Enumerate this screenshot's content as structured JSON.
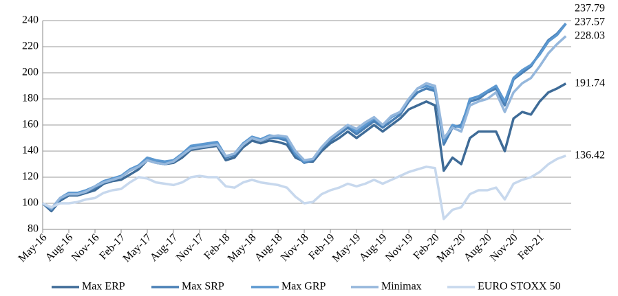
{
  "chart_data": {
    "type": "line",
    "categories": [
      "May-16",
      null,
      null,
      "Aug-16",
      null,
      null,
      "Nov-16",
      null,
      null,
      "Feb-17",
      null,
      null,
      "May-17",
      null,
      null,
      "Aug-17",
      null,
      null,
      "Nov-17",
      null,
      null,
      "Feb-18",
      null,
      null,
      "May-18",
      null,
      null,
      "Aug-18",
      null,
      null,
      "Nov-18",
      null,
      null,
      "Feb-19",
      null,
      null,
      "May-19",
      null,
      null,
      "Aug-19",
      null,
      null,
      "Nov-19",
      null,
      null,
      "Feb-20",
      null,
      null,
      "May-20",
      null,
      null,
      "Aug-20",
      null,
      null,
      "Nov-20",
      null,
      null,
      "Feb-21",
      null,
      null,
      null
    ],
    "series": [
      {
        "name": "Max ERP",
        "color": "#3e6b97",
        "values": [
          100,
          94,
          102,
          106,
          106,
          108,
          110,
          115,
          117,
          118,
          122,
          126,
          133,
          131,
          130,
          131,
          135,
          141,
          142,
          143,
          144,
          133,
          135,
          143,
          148,
          146,
          148,
          147,
          145,
          135,
          132,
          132,
          140,
          146,
          150,
          155,
          150,
          155,
          160,
          155,
          160,
          165,
          172,
          175,
          178,
          175,
          125,
          135,
          130,
          150,
          155,
          155,
          155,
          140,
          165,
          170,
          168,
          178,
          185,
          188,
          191.74
        ]
      },
      {
        "name": "Max SRP",
        "color": "#4a80b6",
        "values": [
          100,
          95,
          103,
          107,
          107,
          109,
          112,
          116,
          118,
          120,
          125,
          128,
          134,
          132,
          131,
          132,
          137,
          143,
          144,
          145,
          146,
          135,
          137,
          145,
          150,
          148,
          150,
          150,
          148,
          137,
          131,
          133,
          142,
          148,
          153,
          158,
          153,
          158,
          163,
          158,
          163,
          168,
          178,
          185,
          188,
          186,
          145,
          158,
          160,
          178,
          180,
          185,
          188,
          175,
          195,
          200,
          205,
          215,
          225,
          230,
          237.79
        ]
      },
      {
        "name": "Max GRP",
        "color": "#5c98d0",
        "values": [
          100,
          96,
          104,
          108,
          108,
          110,
          113,
          117,
          119,
          121,
          126,
          129,
          135,
          133,
          132,
          133,
          138,
          144,
          145,
          146,
          147,
          136,
          138,
          146,
          151,
          149,
          152,
          151,
          150,
          138,
          132,
          134,
          143,
          150,
          155,
          160,
          155,
          160,
          165,
          160,
          166,
          170,
          180,
          188,
          190,
          188,
          148,
          160,
          158,
          180,
          182,
          186,
          190,
          178,
          196,
          202,
          206,
          214,
          224,
          229,
          237.57
        ]
      },
      {
        "name": "Minimax",
        "color": "#95b7dc",
        "values": [
          100,
          96,
          104,
          107,
          107,
          109,
          113,
          116,
          118,
          120,
          125,
          128,
          133,
          131,
          130,
          132,
          137,
          142,
          143,
          144,
          145,
          136,
          138,
          145,
          150,
          148,
          151,
          152,
          151,
          140,
          133,
          134,
          143,
          150,
          155,
          160,
          157,
          162,
          166,
          160,
          167,
          170,
          180,
          188,
          192,
          190,
          150,
          158,
          155,
          175,
          178,
          180,
          185,
          170,
          185,
          192,
          196,
          205,
          215,
          222,
          228.03
        ]
      },
      {
        "name": "EURO STOXX 50",
        "color": "#c7d8ed",
        "values": [
          100,
          97,
          100,
          100,
          101,
          103,
          104,
          108,
          110,
          111,
          116,
          120,
          119,
          116,
          115,
          114,
          116,
          120,
          121,
          120,
          120,
          113,
          112,
          116,
          118,
          116,
          115,
          114,
          112,
          105,
          100,
          101,
          107,
          110,
          112,
          115,
          113,
          115,
          118,
          115,
          118,
          121,
          124,
          126,
          128,
          127,
          88,
          95,
          97,
          107,
          110,
          110,
          112,
          103,
          115,
          118,
          120,
          124,
          130,
          134,
          136.42
        ]
      }
    ],
    "ylim": [
      80,
      240
    ],
    "yticks": [
      80,
      100,
      120,
      140,
      160,
      180,
      200,
      220,
      240
    ],
    "grid": true,
    "legend": "bottom"
  }
}
